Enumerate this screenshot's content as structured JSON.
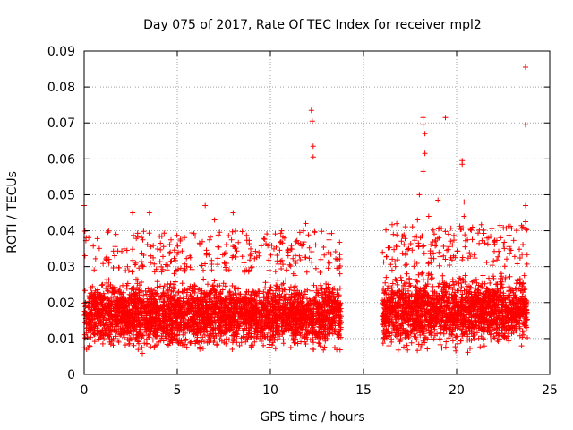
{
  "chart_data": {
    "type": "scatter",
    "title": "Day 075 of 2017, Rate Of TEC Index for receiver mpl2",
    "xlabel": "GPS time / hours",
    "ylabel": "ROTI / TECUs",
    "xlim": [
      0,
      25
    ],
    "ylim": [
      0,
      0.09
    ],
    "xticks": [
      0,
      5,
      10,
      15,
      20,
      25
    ],
    "xtick_labels": [
      "0",
      "5",
      "10",
      "15",
      "20",
      "25"
    ],
    "yticks": [
      0,
      0.01,
      0.02,
      0.03,
      0.04,
      0.05,
      0.06,
      0.07,
      0.08,
      0.09
    ],
    "ytick_labels": [
      "0",
      "0.01",
      "0.02",
      "0.03",
      "0.04",
      "0.05",
      "0.06",
      "0.07",
      "0.08",
      "0.09"
    ],
    "grid": true,
    "marker": "+",
    "color": "#ff0000",
    "data_gap_hours": [
      13.8,
      16.0
    ],
    "dense_bands": [
      {
        "x_start": 0.0,
        "x_end": 13.8,
        "y_low": 0.005,
        "y_high": 0.028
      },
      {
        "x_start": 16.0,
        "x_end": 23.8,
        "y_low": 0.005,
        "y_high": 0.03
      }
    ],
    "outliers": [
      {
        "x": 0.0,
        "y": 0.047
      },
      {
        "x": 2.6,
        "y": 0.045
      },
      {
        "x": 3.5,
        "y": 0.045
      },
      {
        "x": 6.5,
        "y": 0.047
      },
      {
        "x": 7.0,
        "y": 0.043
      },
      {
        "x": 8.0,
        "y": 0.045
      },
      {
        "x": 11.9,
        "y": 0.042
      },
      {
        "x": 12.2,
        "y": 0.0735
      },
      {
        "x": 12.25,
        "y": 0.0705
      },
      {
        "x": 12.3,
        "y": 0.0635
      },
      {
        "x": 12.3,
        "y": 0.0605
      },
      {
        "x": 16.6,
        "y": 0.039
      },
      {
        "x": 17.9,
        "y": 0.043
      },
      {
        "x": 18.0,
        "y": 0.05
      },
      {
        "x": 18.2,
        "y": 0.0715
      },
      {
        "x": 18.2,
        "y": 0.0695
      },
      {
        "x": 18.3,
        "y": 0.067
      },
      {
        "x": 18.3,
        "y": 0.0615
      },
      {
        "x": 18.2,
        "y": 0.0565
      },
      {
        "x": 18.5,
        "y": 0.044
      },
      {
        "x": 19.0,
        "y": 0.0485
      },
      {
        "x": 19.4,
        "y": 0.0715
      },
      {
        "x": 20.3,
        "y": 0.0595
      },
      {
        "x": 20.3,
        "y": 0.0585
      },
      {
        "x": 20.4,
        "y": 0.048
      },
      {
        "x": 20.4,
        "y": 0.044
      },
      {
        "x": 23.7,
        "y": 0.0855
      },
      {
        "x": 23.7,
        "y": 0.0695
      },
      {
        "x": 23.7,
        "y": 0.047
      },
      {
        "x": 23.7,
        "y": 0.0425
      }
    ]
  }
}
